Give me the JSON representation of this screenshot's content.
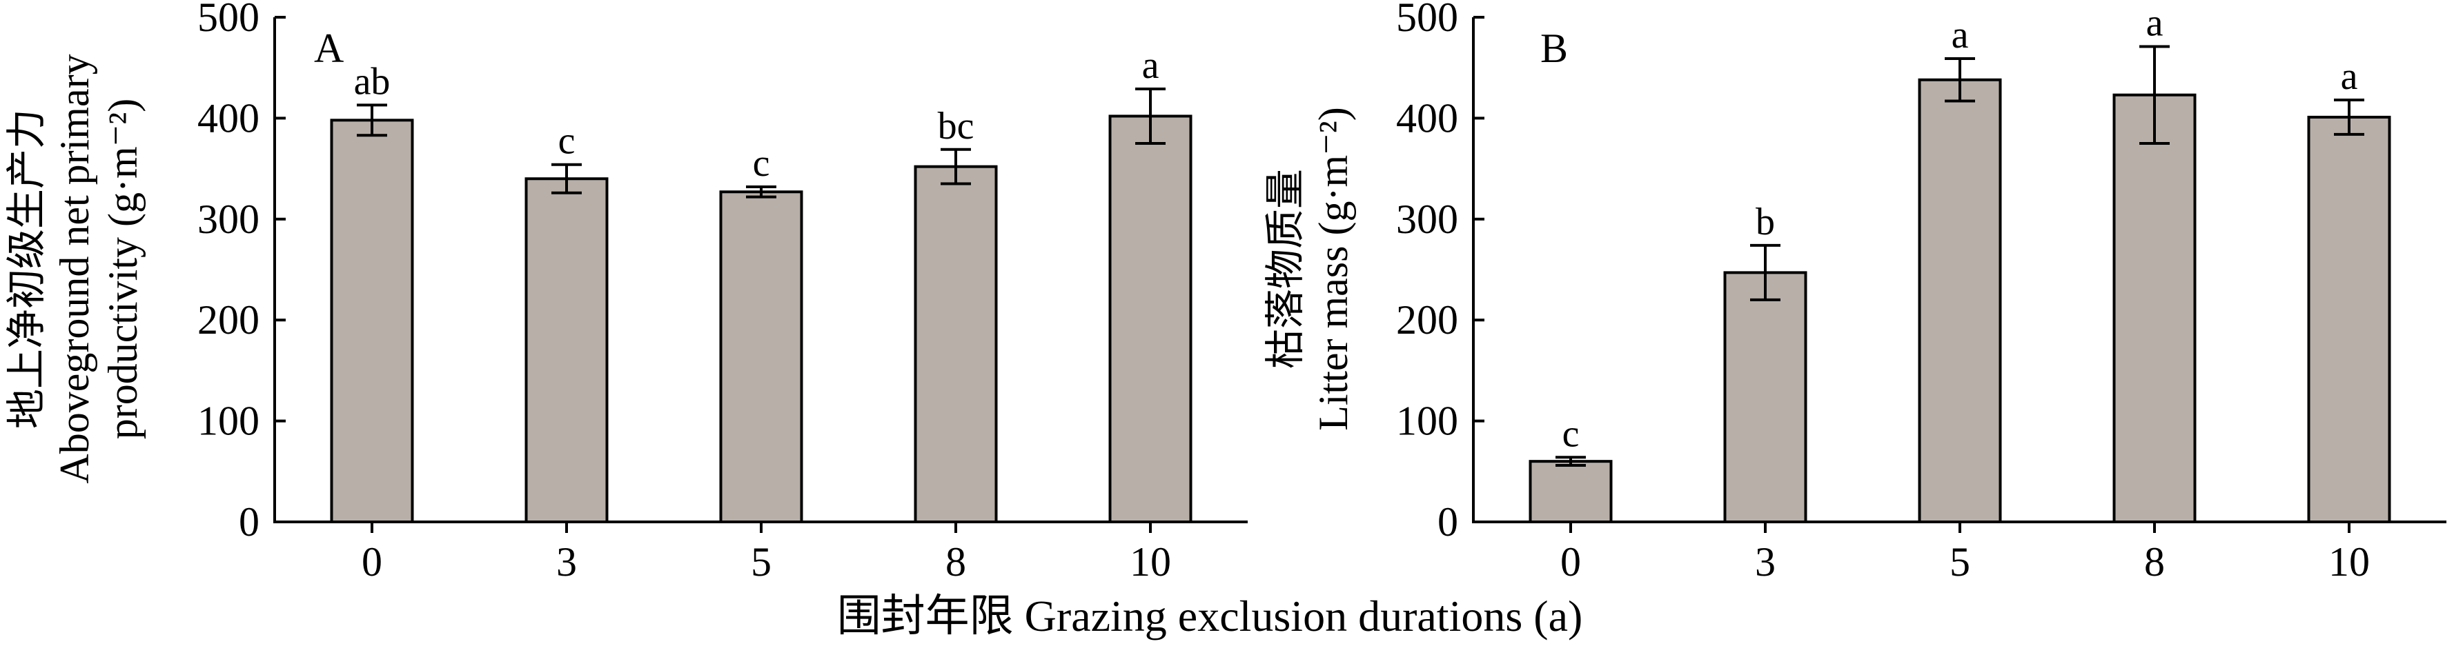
{
  "xlabel": "围封年限 Grazing exclusion durations (a)",
  "chart_data": [
    {
      "type": "bar",
      "panel": "A",
      "ylabel_lines": [
        "地上净初级生产力",
        "Aboveground net primary",
        "productivity (g·m⁻²)"
      ],
      "categories": [
        "0",
        "3",
        "5",
        "8",
        "10"
      ],
      "values": [
        398,
        340,
        327,
        352,
        402
      ],
      "errors": [
        15,
        14,
        5,
        17,
        27
      ],
      "letters": [
        "ab",
        "c",
        "c",
        "bc",
        "a"
      ],
      "ylim": [
        0,
        500
      ],
      "yticks": [
        "0",
        "100",
        "200",
        "300",
        "400",
        "500"
      ],
      "color": "#b8afa9"
    },
    {
      "type": "bar",
      "panel": "B",
      "ylabel_lines": [
        "枯落物质量",
        "Litter mass (g·m⁻²)"
      ],
      "categories": [
        "0",
        "3",
        "5",
        "8",
        "10"
      ],
      "values": [
        60,
        247,
        438,
        423,
        401
      ],
      "errors": [
        4,
        27,
        21,
        48,
        17
      ],
      "letters": [
        "c",
        "b",
        "a",
        "a",
        "a"
      ],
      "ylim": [
        0,
        500
      ],
      "yticks": [
        "0",
        "100",
        "200",
        "300",
        "400",
        "500"
      ],
      "color": "#b8afa9"
    }
  ]
}
